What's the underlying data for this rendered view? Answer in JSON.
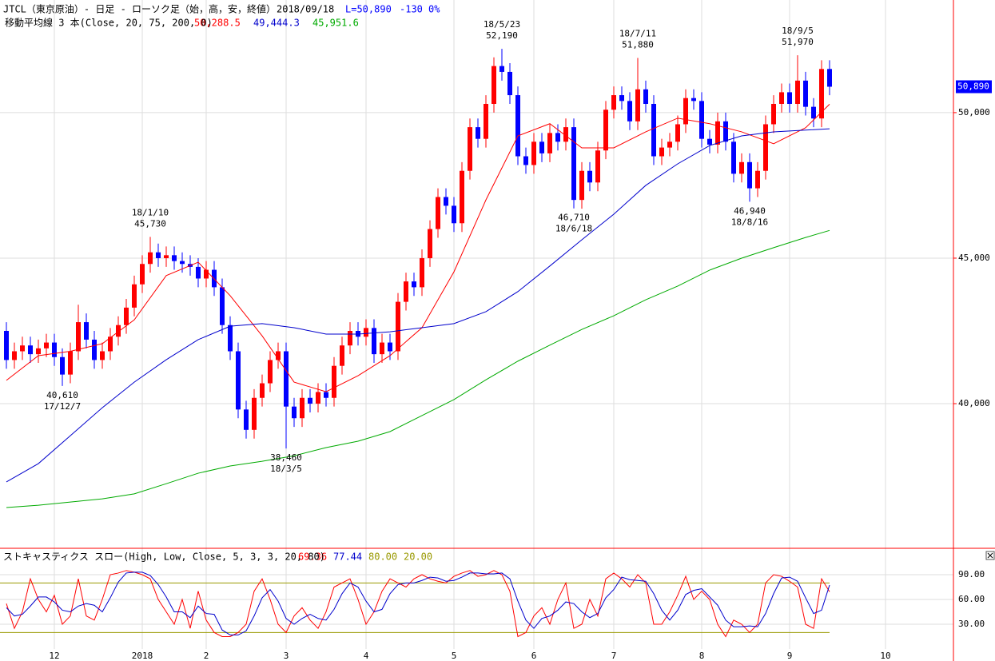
{
  "header": {
    "title": "JTCL（東京原油）- 日足 - ローソク足（始，高，安，終値）",
    "date": "2018/09/18",
    "last": "L=50,890",
    "change": "-130",
    "change_pct": "0%"
  },
  "chart_data": [
    {
      "type": "candlestick",
      "ma_legend": "移動平均線 3 本(Close, 20, 75, 200, 0)",
      "up_color": "#ff0000",
      "down_color": "#0000ff",
      "ylim": [
        35030,
        53870
      ],
      "yticks": [
        {
          "value": 40000,
          "label": "40,000"
        },
        {
          "value": 45000,
          "label": "45,000"
        },
        {
          "value": 50000,
          "label": "50,000"
        }
      ],
      "xticks": [
        {
          "value": 6,
          "label": "12"
        },
        {
          "value": 17,
          "label": "2018"
        },
        {
          "value": 25,
          "label": "2"
        },
        {
          "value": 35,
          "label": "3"
        },
        {
          "value": 45,
          "label": "4"
        },
        {
          "value": 56,
          "label": "5"
        },
        {
          "value": 66,
          "label": "6"
        },
        {
          "value": 76,
          "label": "7"
        },
        {
          "value": 87,
          "label": "8"
        },
        {
          "value": 98,
          "label": "9"
        },
        {
          "value": 110,
          "label": "10"
        }
      ],
      "grid": true,
      "price_tag": "50,890",
      "open": [
        42500,
        41500,
        41800,
        42000,
        41700,
        41900,
        42100,
        41600,
        41000,
        41800,
        42800,
        42200,
        41500,
        41800,
        42300,
        42700,
        43300,
        44100,
        44800,
        45200,
        45000,
        45100,
        44900,
        44800,
        44700,
        44300,
        44600,
        44000,
        42700,
        41800,
        39800,
        39100,
        40200,
        40700,
        41500,
        41800,
        39900,
        39500,
        40200,
        40000,
        40400,
        40200,
        41300,
        42000,
        42500,
        42300,
        42600,
        41700,
        42100,
        41800,
        43500,
        44200,
        44000,
        45000,
        46000,
        47100,
        46800,
        46200,
        48000,
        49500,
        49100,
        50300,
        51600,
        51400,
        50600,
        48500,
        48200,
        49000,
        48600,
        49300,
        49000,
        49500,
        47000,
        48000,
        47600,
        48700,
        50100,
        50600,
        50400,
        49700,
        50800,
        50300,
        48500,
        48800,
        49000,
        49600,
        50500,
        50400,
        49100,
        48900,
        49700,
        49000,
        47900,
        48300,
        47400,
        48000,
        49600,
        50300,
        50700,
        50300,
        51100,
        50200,
        49800,
        51500
      ],
      "high": [
        42800,
        42100,
        42300,
        42300,
        42200,
        42400,
        42400,
        41900,
        42100,
        43400,
        43100,
        42500,
        42100,
        42600,
        43000,
        43600,
        44400,
        45100,
        45730,
        45500,
        45400,
        45400,
        45200,
        45100,
        45000,
        44900,
        44900,
        44300,
        43000,
        42100,
        40100,
        40500,
        41000,
        41800,
        42100,
        42100,
        40200,
        40500,
        40500,
        40700,
        40700,
        41600,
        42300,
        42800,
        42800,
        42900,
        42900,
        42400,
        42400,
        43800,
        44500,
        44500,
        45300,
        46300,
        47400,
        47400,
        47100,
        48300,
        49800,
        49800,
        50600,
        51900,
        52190,
        51700,
        50900,
        48800,
        49300,
        49300,
        49600,
        49600,
        49800,
        49800,
        48300,
        48300,
        49000,
        50400,
        50900,
        50900,
        50700,
        51880,
        51100,
        50600,
        49100,
        49300,
        49900,
        50800,
        50800,
        50700,
        49400,
        50000,
        50000,
        49300,
        48600,
        48600,
        48300,
        49900,
        50600,
        51000,
        51000,
        51970,
        51400,
        50500,
        51800,
        51800
      ],
      "low": [
        41200,
        41200,
        41500,
        41400,
        41400,
        41600,
        41300,
        40610,
        40700,
        41500,
        41900,
        41200,
        41200,
        41500,
        42000,
        42400,
        43000,
        43800,
        44500,
        44700,
        44700,
        44600,
        44500,
        44400,
        44000,
        44000,
        43700,
        42400,
        41500,
        39500,
        38800,
        38800,
        39900,
        40400,
        41200,
        38460,
        39200,
        39200,
        39700,
        39700,
        39900,
        39900,
        41000,
        41700,
        42000,
        42000,
        41400,
        41400,
        41500,
        41500,
        43200,
        43700,
        43700,
        44700,
        45700,
        46500,
        45900,
        45900,
        47700,
        48800,
        48800,
        50000,
        51100,
        50300,
        48200,
        47900,
        47900,
        48300,
        48300,
        48700,
        48700,
        46710,
        46700,
        47300,
        47300,
        48400,
        49800,
        50100,
        49400,
        49400,
        50000,
        48200,
        48200,
        48500,
        48700,
        49300,
        50100,
        48800,
        48600,
        48600,
        48700,
        47600,
        47600,
        46940,
        47100,
        47700,
        49300,
        50000,
        50000,
        50000,
        49900,
        49500,
        49500,
        50600
      ],
      "close": [
        41500,
        41800,
        42000,
        41700,
        41900,
        42100,
        41600,
        41000,
        41800,
        42800,
        42200,
        41500,
        41800,
        42300,
        42700,
        43300,
        44100,
        44800,
        45200,
        45000,
        45100,
        44900,
        44800,
        44700,
        44300,
        44600,
        44000,
        42700,
        41800,
        39800,
        39100,
        40200,
        40700,
        41500,
        41800,
        39900,
        39500,
        40200,
        40000,
        40400,
        40200,
        41300,
        42000,
        42500,
        42300,
        42600,
        41700,
        42100,
        41800,
        43500,
        44200,
        44000,
        45000,
        46000,
        47100,
        46800,
        46200,
        48000,
        49500,
        49100,
        50300,
        51600,
        51400,
        50600,
        48500,
        48200,
        49000,
        48600,
        49300,
        49000,
        49500,
        47000,
        48000,
        47600,
        48700,
        50100,
        50600,
        50400,
        49700,
        50800,
        50300,
        48500,
        48800,
        49000,
        49600,
        50500,
        50400,
        49100,
        48900,
        49700,
        49000,
        47900,
        48300,
        47400,
        48000,
        49600,
        50300,
        50700,
        50300,
        51100,
        50200,
        49800,
        51500,
        50890
      ],
      "annotations": [
        {
          "x": 7,
          "date": "17/12/7",
          "price": {
            "value": 40610,
            "label": "40,610"
          }
        },
        {
          "x": 18,
          "date": "18/1/10",
          "price": {
            "value": 45730,
            "label": "45,730"
          }
        },
        {
          "x": 35,
          "date": "18/3/5",
          "price": {
            "value": 38460,
            "label": "38,460"
          }
        },
        {
          "x": 62,
          "date": "18/5/23",
          "price": {
            "value": 52190,
            "label": "52,190"
          }
        },
        {
          "x": 71,
          "date": "18/6/18",
          "price": {
            "value": 46710,
            "label": "46,710"
          }
        },
        {
          "x": 79,
          "date": "18/7/11",
          "price": {
            "value": 51880,
            "label": "51,880"
          }
        },
        {
          "x": 93,
          "date": "18/8/16",
          "price": {
            "value": 46940,
            "label": "46,940"
          }
        },
        {
          "x": 99,
          "date": "18/9/5",
          "price": {
            "value": 51970,
            "label": "51,970"
          }
        }
      ],
      "series": [
        {
          "color": "#ff0000",
          "last_label": "50,288.5",
          "x": [
            0,
            4,
            8,
            12,
            16,
            20,
            24,
            28,
            32,
            36,
            40,
            44,
            48,
            52,
            56,
            60,
            64,
            68,
            72,
            76,
            80,
            84,
            88,
            92,
            96,
            100,
            103
          ],
          "values": [
            40800,
            41650,
            41800,
            42060,
            42880,
            44400,
            44860,
            43710,
            42330,
            40740,
            40410,
            40960,
            41650,
            42610,
            44530,
            47000,
            49200,
            49620,
            48790,
            48790,
            49340,
            49810,
            49620,
            49340,
            48930,
            49480,
            50288.5
          ]
        },
        {
          "color": "#0000cc",
          "last_label": "49,444.3",
          "x": [
            0,
            4,
            8,
            12,
            16,
            20,
            24,
            28,
            32,
            36,
            40,
            44,
            48,
            52,
            56,
            60,
            64,
            68,
            72,
            76,
            80,
            84,
            88,
            92,
            96,
            100,
            103
          ],
          "values": [
            37310,
            37940,
            38900,
            39860,
            40740,
            41510,
            42200,
            42660,
            42750,
            42610,
            42390,
            42390,
            42470,
            42610,
            42750,
            43160,
            43850,
            44730,
            45630,
            46510,
            47500,
            48240,
            48870,
            49200,
            49340,
            49400,
            49444.3
          ]
        },
        {
          "color": "#00aa00",
          "last_label": "45,951.6",
          "x": [
            0,
            4,
            8,
            12,
            16,
            20,
            24,
            28,
            32,
            36,
            40,
            44,
            48,
            52,
            56,
            60,
            64,
            68,
            72,
            76,
            80,
            84,
            88,
            92,
            96,
            100,
            103
          ],
          "values": [
            36430,
            36510,
            36620,
            36730,
            36900,
            37250,
            37610,
            37860,
            38020,
            38210,
            38490,
            38710,
            39040,
            39590,
            40140,
            40820,
            41460,
            42010,
            42550,
            43020,
            43570,
            44040,
            44590,
            45000,
            45360,
            45710,
            45951.6
          ]
        }
      ]
    },
    {
      "type": "line",
      "title": "ストキャスティクス スロー(High, Low, Close, 5, 3, 3, 20, 80)",
      "ylim": [
        0,
        120
      ],
      "yticks": [
        {
          "value": 30,
          "label": "30.00"
        },
        {
          "value": 60,
          "label": "60.00"
        },
        {
          "value": 90,
          "label": "90.00"
        }
      ],
      "levels": [
        {
          "value": 80,
          "label": "80.00"
        },
        {
          "value": 20,
          "label": "20.00"
        }
      ],
      "level_color": "#999900",
      "series": [
        {
          "color": "#ff0000",
          "last_label": "69.36",
          "values": [
            55,
            25,
            45,
            85,
            60,
            45,
            65,
            30,
            40,
            85,
            40,
            35,
            60,
            90,
            92,
            95,
            93,
            90,
            85,
            60,
            45,
            30,
            60,
            25,
            70,
            35,
            20,
            15,
            15,
            20,
            30,
            70,
            85,
            60,
            30,
            20,
            40,
            50,
            35,
            25,
            45,
            75,
            80,
            85,
            60,
            30,
            45,
            70,
            85,
            80,
            75,
            85,
            90,
            85,
            82,
            80,
            88,
            92,
            95,
            88,
            90,
            95,
            90,
            70,
            15,
            20,
            40,
            50,
            30,
            60,
            80,
            25,
            30,
            60,
            40,
            85,
            92,
            85,
            75,
            90,
            80,
            30,
            30,
            45,
            65,
            88,
            60,
            70,
            60,
            30,
            15,
            35,
            30,
            20,
            30,
            80,
            90,
            88,
            82,
            75,
            30,
            25,
            85,
            69.36
          ]
        },
        {
          "color": "#0000cc",
          "last_label": "77.44",
          "values": [
            50,
            40,
            42,
            52,
            63,
            63,
            57,
            47,
            45,
            52,
            55,
            53,
            45,
            62,
            81,
            92,
            93,
            93,
            89,
            78,
            63,
            45,
            45,
            38,
            52,
            43,
            42,
            23,
            17,
            17,
            22,
            40,
            62,
            72,
            58,
            37,
            30,
            37,
            42,
            37,
            35,
            48,
            67,
            80,
            75,
            58,
            45,
            48,
            67,
            78,
            80,
            80,
            83,
            87,
            86,
            82,
            83,
            87,
            92,
            92,
            91,
            91,
            92,
            85,
            58,
            35,
            25,
            37,
            40,
            47,
            57,
            55,
            45,
            38,
            43,
            62,
            72,
            87,
            84,
            83,
            82,
            67,
            47,
            35,
            47,
            66,
            71,
            73,
            63,
            53,
            35,
            27,
            27,
            28,
            27,
            43,
            67,
            86,
            87,
            82,
            62,
            43,
            47,
            77.44
          ]
        }
      ]
    }
  ]
}
